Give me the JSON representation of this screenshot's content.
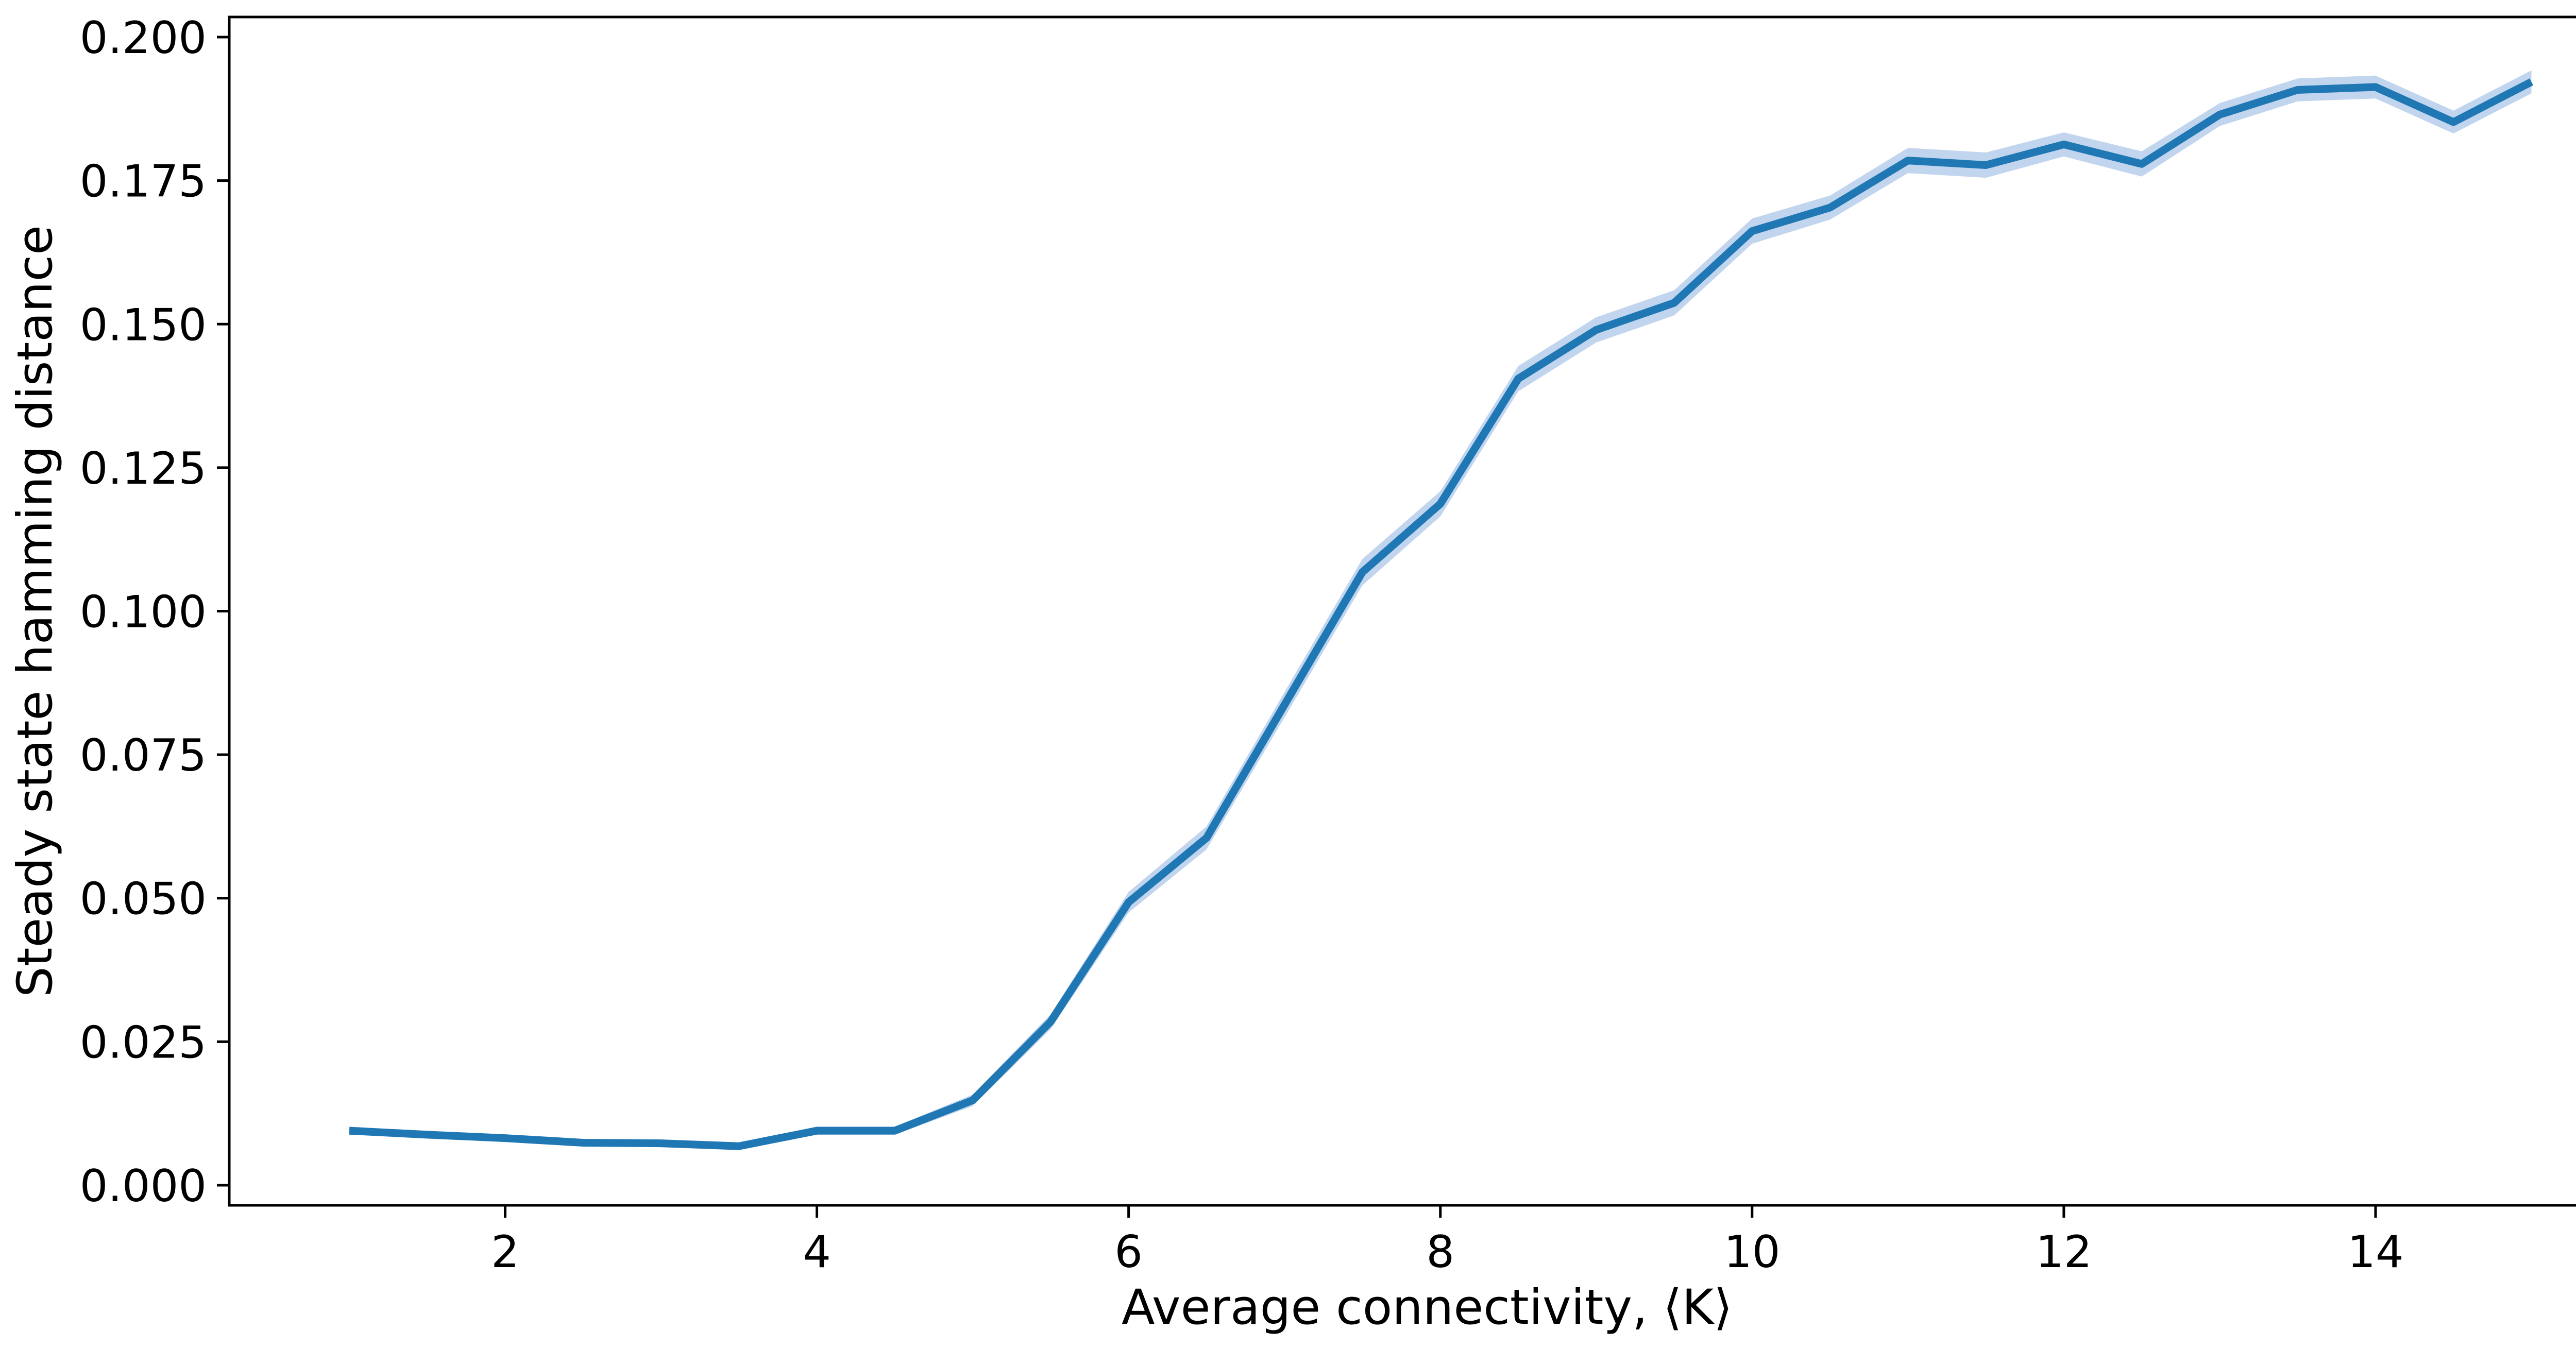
{
  "chart_data": {
    "type": "line",
    "title": "",
    "xlabel": "Average connectivity, ⟨K⟩",
    "ylabel": "Steady state hamming distance",
    "xlim": [
      0.23,
      15.6
    ],
    "ylim": [
      -0.0035,
      0.2035
    ],
    "x_ticks": [
      2,
      4,
      6,
      8,
      10,
      12,
      14
    ],
    "y_ticks": [
      0.0,
      0.025,
      0.05,
      0.075,
      0.1,
      0.125,
      0.15,
      0.175,
      0.2
    ],
    "x_tick_labels": [
      "2",
      "4",
      "6",
      "8",
      "10",
      "12",
      "14"
    ],
    "y_tick_labels": [
      "0.000",
      "0.025",
      "0.050",
      "0.075",
      "0.100",
      "0.125",
      "0.150",
      "0.175",
      "0.200"
    ],
    "grid": false,
    "legend": "none",
    "line_color": "#1f77b4",
    "band_color": "#aec7e8",
    "series": [
      {
        "x": [
          1.0,
          1.5,
          2.0,
          2.5,
          3.0,
          3.5,
          4.0,
          4.5,
          5.0,
          5.5,
          6.0,
          6.5,
          7.0,
          7.5,
          8.0,
          8.5,
          9.0,
          9.5,
          10.0,
          10.5,
          11.0,
          11.5,
          12.0,
          12.5,
          13.0,
          13.5,
          14.0,
          14.5,
          15.0
        ],
        "y": [
          0.0095,
          0.0088,
          0.0082,
          0.0074,
          0.0073,
          0.0068,
          0.0095,
          0.0095,
          0.0148,
          0.0285,
          0.0493,
          0.0605,
          0.0837,
          0.1068,
          0.1187,
          0.1405,
          0.149,
          0.1537,
          0.1662,
          0.1703,
          0.1785,
          0.1777,
          0.1813,
          0.1779,
          0.1865,
          0.1908,
          0.1913,
          0.1852,
          0.1922
        ],
        "ci_low": [
          0.0088,
          0.0082,
          0.0076,
          0.0068,
          0.0067,
          0.0062,
          0.0088,
          0.0088,
          0.0138,
          0.0272,
          0.0475,
          0.0585,
          0.0815,
          0.1045,
          0.1165,
          0.1383,
          0.1468,
          0.1515,
          0.164,
          0.1682,
          0.1763,
          0.1755,
          0.1792,
          0.1757,
          0.1845,
          0.1888,
          0.1893,
          0.1832,
          0.1902
        ],
        "ci_high": [
          0.0102,
          0.0094,
          0.0088,
          0.008,
          0.0079,
          0.0074,
          0.0102,
          0.0102,
          0.0158,
          0.0298,
          0.0511,
          0.0625,
          0.0859,
          0.1091,
          0.1209,
          0.1427,
          0.1512,
          0.1559,
          0.1684,
          0.1724,
          0.1807,
          0.1799,
          0.1834,
          0.1801,
          0.1885,
          0.1928,
          0.1933,
          0.1872,
          0.1942
        ]
      }
    ]
  }
}
